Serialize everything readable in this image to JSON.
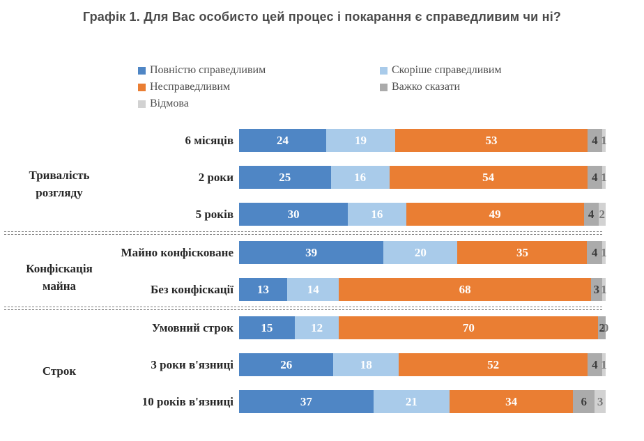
{
  "colors": {
    "fully_fair": "#4F86C5",
    "rather_fair": "#A9CBEA",
    "unfair": "#EA7E33",
    "hard_to_say": "#ABABAB",
    "refusal": "#D2D2D2",
    "title_text": "#4A4A4A",
    "separator": "#7F7F7F"
  },
  "chart_data": {
    "type": "bar",
    "stacked": true,
    "orientation": "horizontal",
    "units": "percent",
    "xlim": [
      0,
      100
    ],
    "grid": false,
    "legend_position": "top",
    "title": "Графік 1. Для Вас особисто цей процес і покарання є справедливим чи ні?",
    "series": [
      "Повністю справедливим",
      "Скоріше справедливим",
      "Несправедливим",
      "Важко сказати",
      "Відмова"
    ],
    "groups": [
      {
        "label": "Тривалість розгляду",
        "rows": [
          {
            "label": "6 місяців",
            "values": [
              24,
              19,
              53,
              4,
              1
            ]
          },
          {
            "label": "2 роки",
            "values": [
              25,
              16,
              54,
              4,
              1
            ]
          },
          {
            "label": "5 років",
            "values": [
              30,
              16,
              49,
              4,
              2
            ]
          }
        ]
      },
      {
        "label": "Конфіскація майна",
        "rows": [
          {
            "label": "Майно конфісковане",
            "values": [
              39,
              20,
              35,
              4,
              1
            ]
          },
          {
            "label": "Без конфіскації",
            "values": [
              13,
              14,
              68,
              3,
              1
            ]
          }
        ]
      },
      {
        "label": "Строк",
        "rows": [
          {
            "label": "Умовний строк",
            "values": [
              15,
              12,
              70,
              2,
              0
            ]
          },
          {
            "label": "3 роки в'язниці",
            "values": [
              26,
              18,
              52,
              4,
              1
            ]
          },
          {
            "label": "10 років в'язниці",
            "values": [
              37,
              21,
              34,
              6,
              3
            ]
          }
        ]
      }
    ]
  }
}
